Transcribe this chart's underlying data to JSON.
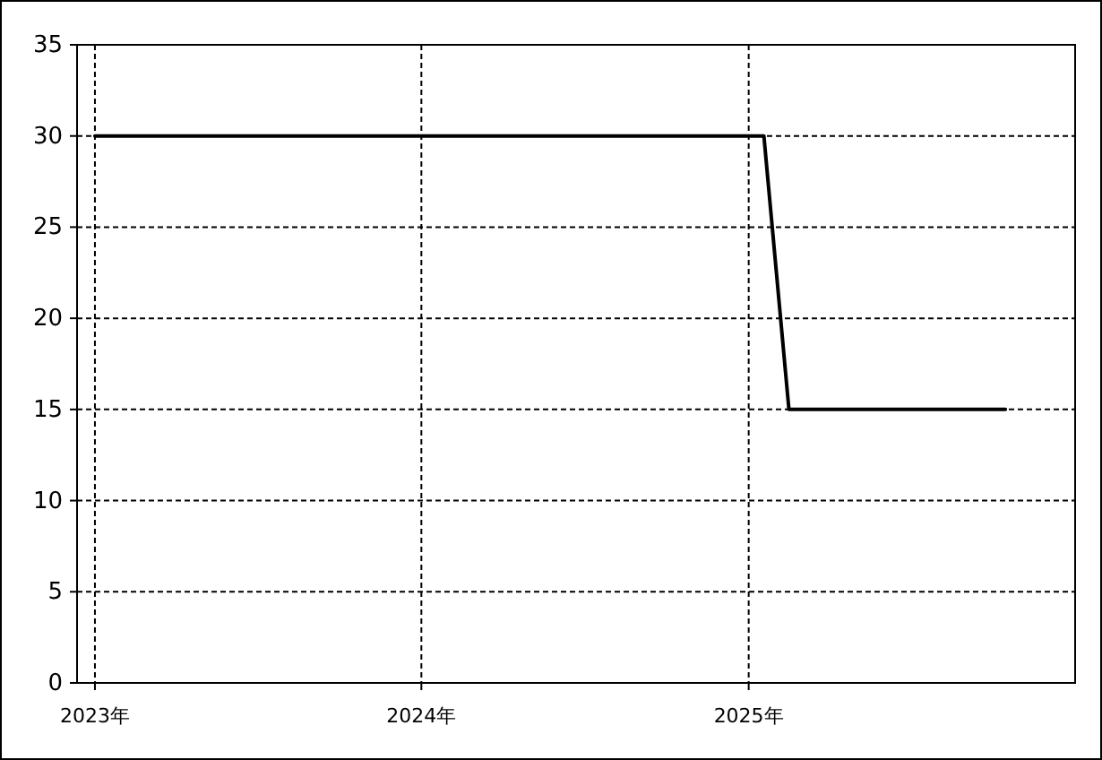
{
  "chart_data": {
    "type": "line",
    "x": [
      "2023-01-01",
      "2025-01-18",
      "2025-02-15",
      "2025-10-15"
    ],
    "series": [
      {
        "color": "#000000",
        "values": [
          30,
          30,
          15,
          15
        ]
      }
    ],
    "xlim": [
      "2022-12-12",
      "2026-01-01"
    ],
    "xticks": [
      {
        "value": "2023-01-01",
        "label": "2023年"
      },
      {
        "value": "2024-01-01",
        "label": "2024年"
      },
      {
        "value": "2025-01-01",
        "label": "2025年"
      }
    ],
    "ylim": [
      0,
      35
    ],
    "yticks": [
      0,
      5,
      10,
      15,
      20,
      25,
      30,
      35
    ],
    "grid": true,
    "line_style": "solid",
    "marker": "none"
  }
}
